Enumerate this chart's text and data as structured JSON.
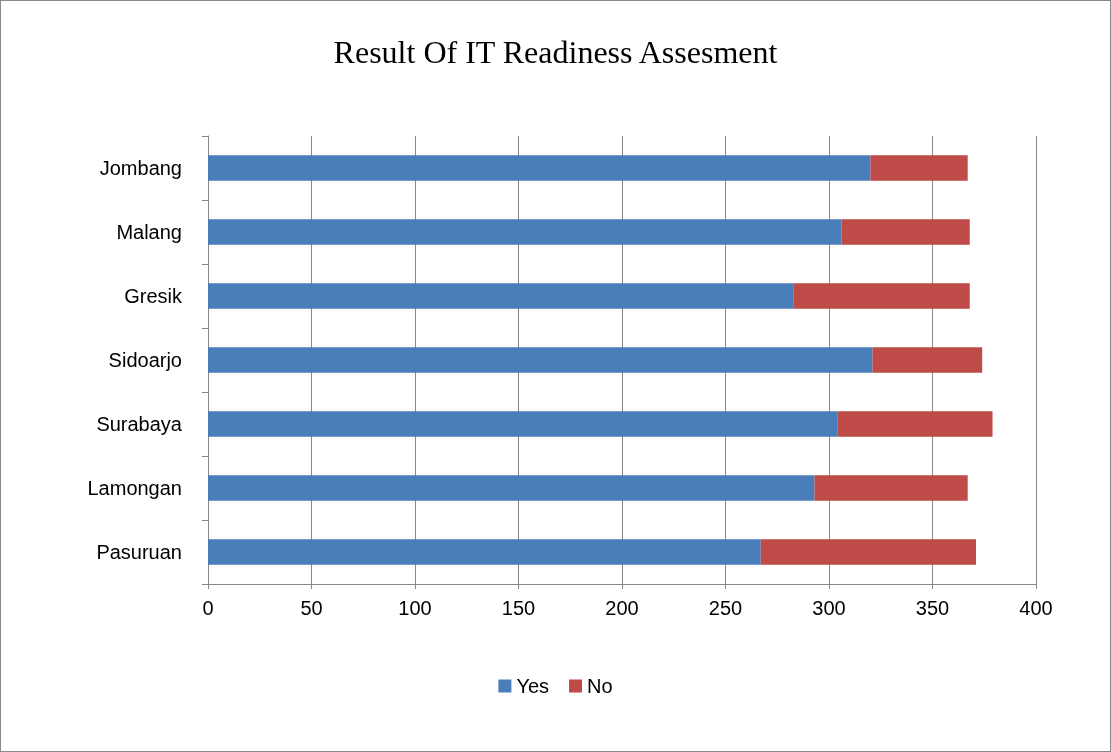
{
  "chart_data": {
    "type": "bar",
    "title": "Result Of IT Readiness Assesment",
    "orientation": "horizontal",
    "stacked": true,
    "categories": [
      "Jombang",
      "Malang",
      "Gresik",
      "Sidoarjo",
      "Surabaya",
      "Lamongan",
      "Pasuruan"
    ],
    "series": [
      {
        "name": "Yes",
        "color": "#4a7ebb",
        "values": [
          320,
          306,
          283,
          321,
          304,
          293,
          267
        ]
      },
      {
        "name": "No",
        "color": "#be4b48",
        "values": [
          47,
          62,
          85,
          53,
          75,
          74,
          104
        ]
      }
    ],
    "xlim": [
      0,
      400
    ],
    "xticks": [
      0,
      50,
      100,
      150,
      200,
      250,
      300,
      350,
      400
    ],
    "grid": "x",
    "legend": "bottom"
  }
}
